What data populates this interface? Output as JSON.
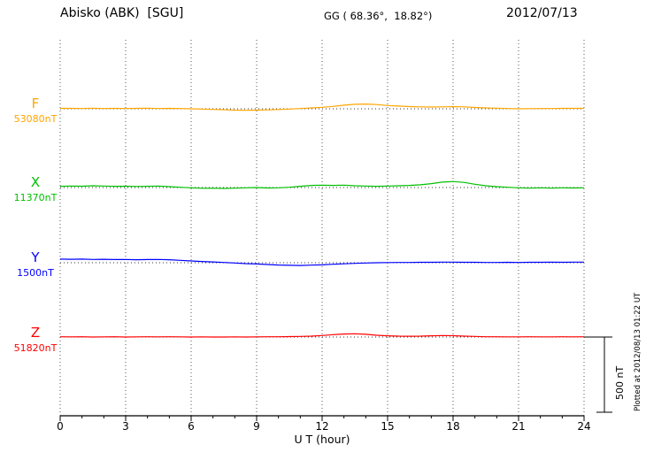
{
  "header": {
    "station": "Abisko (ABK)  [SGU]",
    "coordinates": "GG ( 68.36°,  18.82°)",
    "date": "2012/07/13"
  },
  "chart_data": {
    "type": "line",
    "title": "Abisko (ABK) [SGU] magnetogram 2012/07/13",
    "xlabel": "U T (hour)",
    "xlim": [
      0,
      24
    ],
    "x_ticks": [
      0,
      3,
      6,
      9,
      12,
      15,
      18,
      21,
      24
    ],
    "x_step_hours": 0.5,
    "grid": "dotted vertical lines every 3 hours; dotted horizontal baseline per trace",
    "legend_position": "left margin labels",
    "scale_bar": {
      "label": "500 nT",
      "value_nT": 500
    },
    "series": [
      {
        "name": "F",
        "baseline_label": "53080nT",
        "baseline_nT": 53080,
        "color": "#FFA500",
        "offsets_nT": [
          3,
          3,
          2,
          4,
          2,
          3,
          2,
          3,
          4,
          2,
          3,
          2,
          0,
          -2,
          -4,
          -6,
          -9,
          -10,
          -9,
          -7,
          -5,
          -2,
          2,
          6,
          10,
          16,
          24,
          30,
          32,
          28,
          22,
          18,
          15,
          13,
          12,
          13,
          15,
          13,
          9,
          6,
          4,
          2,
          0,
          1,
          2,
          2,
          3,
          3,
          3
        ]
      },
      {
        "name": "X",
        "baseline_label": "11370nT",
        "baseline_nT": 11370,
        "color": "#00C000",
        "offsets_nT": [
          8,
          10,
          9,
          12,
          10,
          8,
          9,
          7,
          8,
          10,
          6,
          2,
          -2,
          -5,
          -4,
          -6,
          -4,
          -2,
          0,
          -3,
          -2,
          2,
          8,
          14,
          16,
          14,
          16,
          12,
          10,
          8,
          10,
          12,
          14,
          18,
          26,
          36,
          40,
          34,
          22,
          12,
          6,
          2,
          -2,
          -4,
          -2,
          -4,
          -2,
          -3,
          -2
        ]
      },
      {
        "name": "Y",
        "baseline_label": "1500nT",
        "baseline_nT": 1500,
        "color": "#0000FF",
        "offsets_nT": [
          24,
          23,
          24,
          22,
          23,
          21,
          22,
          20,
          21,
          22,
          20,
          16,
          12,
          8,
          5,
          2,
          -2,
          -6,
          -8,
          -12,
          -15,
          -17,
          -18,
          -16,
          -14,
          -10,
          -7,
          -4,
          -2,
          0,
          1,
          2,
          2,
          3,
          3,
          4,
          4,
          3,
          3,
          2,
          2,
          3,
          2,
          3,
          3,
          4,
          3,
          4,
          4
        ]
      },
      {
        "name": "Z",
        "baseline_label": "51820nT",
        "baseline_nT": 51820,
        "color": "#FF0000",
        "offsets_nT": [
          2,
          1,
          2,
          0,
          1,
          2,
          0,
          1,
          2,
          1,
          2,
          1,
          0,
          1,
          0,
          0,
          1,
          0,
          1,
          2,
          2,
          3,
          4,
          6,
          10,
          16,
          20,
          22,
          18,
          12,
          8,
          6,
          5,
          6,
          8,
          10,
          9,
          6,
          4,
          2,
          2,
          1,
          1,
          2,
          1,
          1,
          2,
          1,
          2
        ]
      }
    ]
  },
  "side_note": {
    "plotted": "Plotted at 2012/08/13 01:22 UT"
  }
}
